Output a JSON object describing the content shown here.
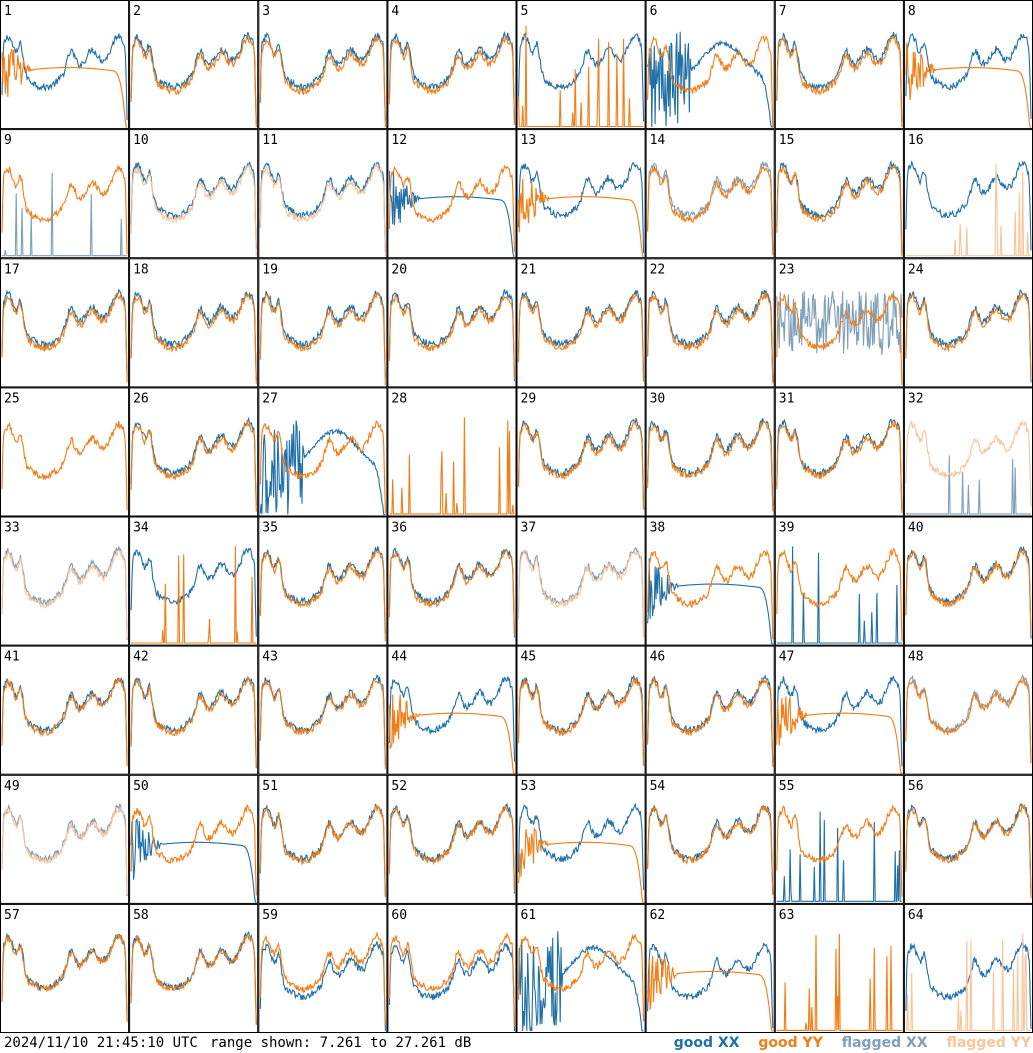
{
  "colors": {
    "good_xx": "#1f6fa8",
    "good_yy": "#f47c14",
    "flagged_xx": "#7f9fbb",
    "flagged_yy": "#f8c49a",
    "background": "#ffffff",
    "grid": "#000000"
  },
  "footer": {
    "timestamp": "2024/11/10 21:45:10 UTC",
    "range": "range shown: 7.261 to 27.261 dB"
  },
  "legend": {
    "good_xx": "good XX",
    "good_yy": "good YY",
    "flagged_xx": "flagged XX",
    "flagged_yy": "flagged YY"
  },
  "chart_data": {
    "type": "line",
    "layout": "8x8 small multiples",
    "y_unit": "dB",
    "ylim": [
      7.261,
      27.261
    ],
    "series_names": [
      "good XX",
      "good YY",
      "flagged XX",
      "flagged YY"
    ],
    "tiles": [
      {
        "label": "1",
        "xx": "good",
        "yy": "good",
        "yy_kind": "roll"
      },
      {
        "label": "2",
        "xx": "good",
        "yy": "good"
      },
      {
        "label": "3",
        "xx": "good",
        "yy": "good"
      },
      {
        "label": "4",
        "xx": "good",
        "yy": "good"
      },
      {
        "label": "5",
        "xx": "good",
        "yy": "good",
        "yy_kind": "spikes"
      },
      {
        "label": "6",
        "xx": "good",
        "yy": "good",
        "xx_kind": "hump"
      },
      {
        "label": "7",
        "xx": "good",
        "yy": "good"
      },
      {
        "label": "8",
        "xx": "good",
        "yy": "good",
        "yy_kind": "roll"
      },
      {
        "label": "9",
        "xx": "flagged",
        "yy": "good",
        "xx_kind": "spikes"
      },
      {
        "label": "10",
        "xx": "good",
        "yy": "flagged"
      },
      {
        "label": "11",
        "xx": "good",
        "yy": "flagged"
      },
      {
        "label": "12",
        "xx": "good",
        "yy": "good",
        "xx_kind": "roll"
      },
      {
        "label": "13",
        "xx": "good",
        "yy": "good",
        "yy_kind": "roll"
      },
      {
        "label": "14",
        "xx": "flagged",
        "yy": "good"
      },
      {
        "label": "15",
        "xx": "good",
        "yy": "good"
      },
      {
        "label": "16",
        "xx": "good",
        "yy": "flagged",
        "yy_kind": "spikes"
      },
      {
        "label": "17",
        "xx": "good",
        "yy": "good"
      },
      {
        "label": "18",
        "xx": "good",
        "yy": "good"
      },
      {
        "label": "19",
        "xx": "good",
        "yy": "good"
      },
      {
        "label": "20",
        "xx": "good",
        "yy": "good"
      },
      {
        "label": "21",
        "xx": "good",
        "yy": "good"
      },
      {
        "label": "22",
        "xx": "good",
        "yy": "good"
      },
      {
        "label": "23",
        "xx": "flagged",
        "yy": "good",
        "xx_kind": "noise"
      },
      {
        "label": "24",
        "xx": "good",
        "yy": "good"
      },
      {
        "label": "25",
        "xx": "none",
        "yy": "good"
      },
      {
        "label": "26",
        "xx": "good",
        "yy": "good"
      },
      {
        "label": "27",
        "xx": "good",
        "yy": "good",
        "xx_kind": "hump"
      },
      {
        "label": "28",
        "xx": "none",
        "yy": "good",
        "yy_kind": "spikes"
      },
      {
        "label": "29",
        "xx": "good",
        "yy": "good"
      },
      {
        "label": "30",
        "xx": "good",
        "yy": "good"
      },
      {
        "label": "31",
        "xx": "good",
        "yy": "good"
      },
      {
        "label": "32",
        "xx": "flagged",
        "yy": "flagged",
        "xx_kind": "spikes"
      },
      {
        "label": "33",
        "xx": "flagged",
        "yy": "flagged"
      },
      {
        "label": "34",
        "xx": "good",
        "yy": "good",
        "yy_kind": "spikes"
      },
      {
        "label": "35",
        "xx": "good",
        "yy": "good"
      },
      {
        "label": "36",
        "xx": "good",
        "yy": "good"
      },
      {
        "label": "37",
        "xx": "flagged",
        "yy": "flagged"
      },
      {
        "label": "38",
        "xx": "good",
        "yy": "good",
        "xx_kind": "roll"
      },
      {
        "label": "39",
        "xx": "good",
        "yy": "good",
        "xx_kind": "spikes"
      },
      {
        "label": "40",
        "xx": "good",
        "yy": "good"
      },
      {
        "label": "41",
        "xx": "good",
        "yy": "good"
      },
      {
        "label": "42",
        "xx": "good",
        "yy": "good"
      },
      {
        "label": "43",
        "xx": "good",
        "yy": "good"
      },
      {
        "label": "44",
        "xx": "good",
        "yy": "good",
        "yy_kind": "roll"
      },
      {
        "label": "45",
        "xx": "good",
        "yy": "good"
      },
      {
        "label": "46",
        "xx": "good",
        "yy": "good"
      },
      {
        "label": "47",
        "xx": "good",
        "yy": "good",
        "yy_kind": "roll"
      },
      {
        "label": "48",
        "xx": "flagged",
        "yy": "good"
      },
      {
        "label": "49",
        "xx": "flagged",
        "yy": "flagged"
      },
      {
        "label": "50",
        "xx": "good",
        "yy": "good",
        "xx_kind": "roll"
      },
      {
        "label": "51",
        "xx": "good",
        "yy": "good"
      },
      {
        "label": "52",
        "xx": "good",
        "yy": "good"
      },
      {
        "label": "53",
        "xx": "good",
        "yy": "good",
        "yy_kind": "roll"
      },
      {
        "label": "54",
        "xx": "good",
        "yy": "good"
      },
      {
        "label": "55",
        "xx": "good",
        "yy": "good",
        "xx_kind": "spikes"
      },
      {
        "label": "56",
        "xx": "good",
        "yy": "good"
      },
      {
        "label": "57",
        "xx": "good",
        "yy": "good"
      },
      {
        "label": "58",
        "xx": "good",
        "yy": "good"
      },
      {
        "label": "59",
        "xx": "good",
        "yy": "good"
      },
      {
        "label": "60",
        "xx": "good",
        "yy": "good"
      },
      {
        "label": "61",
        "xx": "good",
        "yy": "good",
        "xx_kind": "hump"
      },
      {
        "label": "62",
        "xx": "good",
        "yy": "good",
        "yy_kind": "roll"
      },
      {
        "label": "63",
        "xx": "none",
        "yy": "good",
        "yy_kind": "spikes"
      },
      {
        "label": "64",
        "xx": "good",
        "yy": "flagged",
        "yy_kind": "spikes"
      }
    ]
  }
}
